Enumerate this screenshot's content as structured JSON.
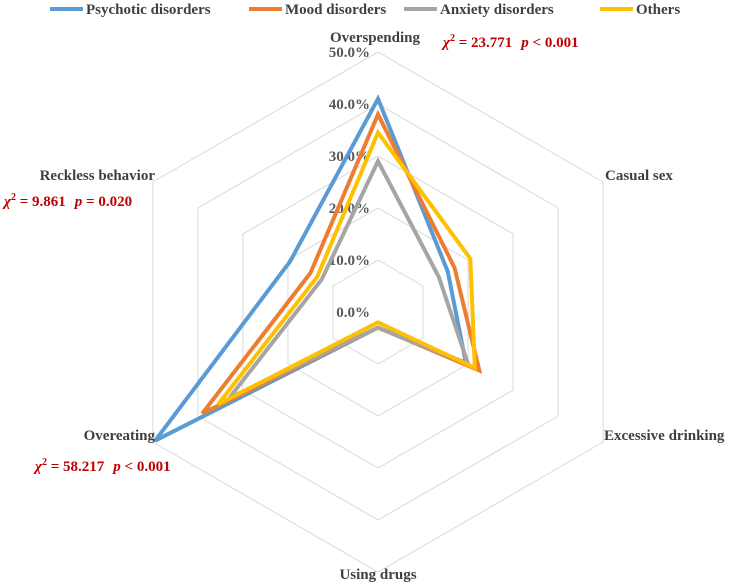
{
  "chart_data": {
    "type": "radar",
    "axes": [
      "Overspending",
      "Casual sex",
      "Excessive drinking",
      "Using drugs",
      "Overeating",
      "Reckless behavior"
    ],
    "rlim": [
      0,
      50
    ],
    "rticks": [
      "0.0%",
      "10.0%",
      "20.0%",
      "30.0%",
      "40.0%",
      "50.0%"
    ],
    "rtick_values": [
      0,
      10,
      20,
      30,
      40,
      50
    ],
    "series": [
      {
        "name": "Psychotic disorders",
        "color": "#5b9bd5",
        "values": [
          41.0,
          15.5,
          19.5,
          3.0,
          49.5,
          19.5
        ]
      },
      {
        "name": "Mood disorders",
        "color": "#ed7d31",
        "values": [
          38.0,
          17.0,
          22.5,
          3.0,
          39.0,
          15.0
        ]
      },
      {
        "name": "Anxiety disorders",
        "color": "#a5a5a5",
        "values": [
          29.0,
          13.5,
          20.0,
          3.0,
          33.0,
          12.5
        ]
      },
      {
        "name": "Others",
        "color": "#ffc000",
        "values": [
          34.5,
          20.5,
          21.5,
          2.0,
          35.5,
          13.5
        ]
      }
    ],
    "annotations": [
      {
        "axis": "Overspending",
        "chi_symbol": "χ",
        "chi_sup": "2",
        "chi_value": " = 23.771",
        "p_symbol": "p",
        "p_value": " < 0.001"
      },
      {
        "axis": "Reckless behavior",
        "chi_symbol": "χ",
        "chi_sup": "2",
        "chi_value": " = 9.861",
        "p_symbol": "p",
        "p_value": " = 0.020"
      },
      {
        "axis": "Overeating",
        "chi_symbol": "χ",
        "chi_sup": "2",
        "chi_value": " = 58.217",
        "p_symbol": "p",
        "p_value": " < 0.001"
      }
    ],
    "legend_position": "top",
    "grid": true
  }
}
